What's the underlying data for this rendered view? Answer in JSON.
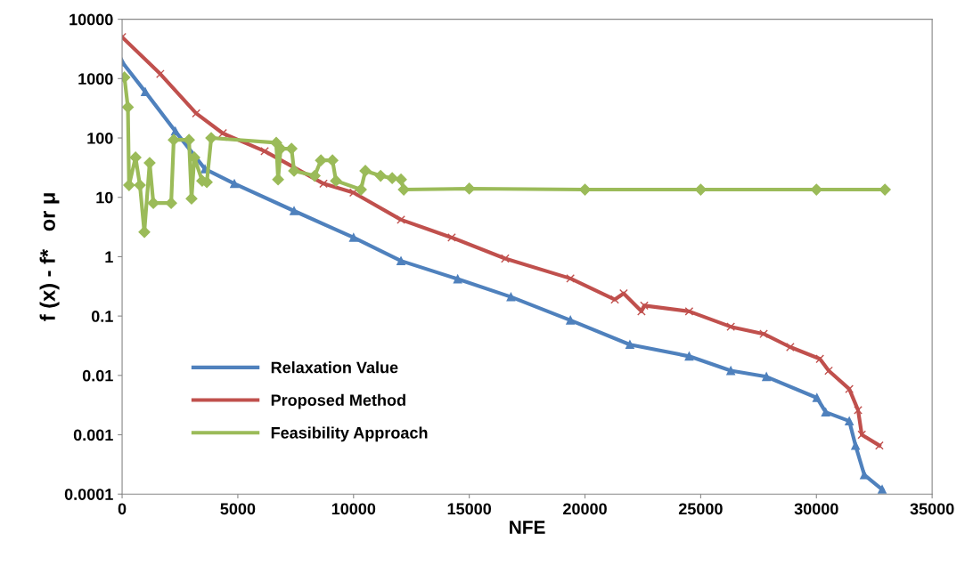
{
  "chart_data": {
    "type": "line",
    "xlabel": "NFE",
    "ylabel": "f (x) - f*   or μ",
    "log": "y",
    "grid": false,
    "legend": "bottom left",
    "xlim": [
      0,
      35000
    ],
    "xticks": [
      0,
      5000,
      10000,
      15000,
      20000,
      25000,
      30000,
      35000
    ],
    "ylim": [
      0.0001,
      10000
    ],
    "yticks": [
      0.0001,
      0.001,
      0.01,
      0.1,
      1,
      10,
      100,
      1000,
      10000
    ],
    "series": [
      {
        "name": "Relaxation Value",
        "color": "#4f81bd",
        "marker": "triangle",
        "x": [
          0,
          1000,
          2300,
          3580,
          4850,
          7430,
          10000,
          12050,
          14500,
          16800,
          19370,
          21940,
          24500,
          26300,
          27840,
          30020,
          30400,
          31420,
          31690,
          32070,
          32840
        ],
        "values": [
          1900,
          600,
          130,
          30,
          17,
          5.9,
          2.1,
          0.85,
          0.42,
          0.21,
          0.085,
          0.033,
          0.021,
          0.012,
          0.0095,
          0.0042,
          0.0024,
          0.0017,
          0.00066,
          0.00021,
          0.00012
        ]
      },
      {
        "name": "Proposed Method",
        "color": "#c0504d",
        "marker": "cross",
        "x": [
          0,
          1650,
          3200,
          4350,
          6160,
          8700,
          10000,
          12050,
          14240,
          16550,
          19370,
          21290,
          21670,
          22440,
          22560,
          24500,
          26300,
          27720,
          28870,
          30150,
          30530,
          31420,
          31800,
          31960,
          32720
        ],
        "values": [
          5000,
          1200,
          260,
          120,
          60,
          17,
          12,
          4.2,
          2.1,
          0.93,
          0.43,
          0.19,
          0.24,
          0.12,
          0.15,
          0.12,
          0.066,
          0.05,
          0.03,
          0.019,
          0.012,
          0.0059,
          0.0026,
          0.001,
          0.00066
        ]
      },
      {
        "name": "Feasibility Approach",
        "color": "#9bbb59",
        "marker": "diamond",
        "x": [
          100,
          250,
          300,
          580,
          770,
          960,
          1190,
          1350,
          2120,
          2230,
          2890,
          3000,
          3120,
          3460,
          3660,
          3850,
          6660,
          6740,
          6850,
          7320,
          7430,
          8320,
          8590,
          9090,
          9240,
          10320,
          10510,
          11170,
          11670,
          12050,
          12170,
          15000,
          20000,
          25000,
          30000,
          32960
        ],
        "values": [
          1050,
          330,
          16,
          47,
          16,
          2.6,
          38,
          8,
          8,
          93,
          93,
          9.5,
          47,
          19,
          18,
          100,
          83,
          20,
          66,
          66,
          28,
          23,
          42,
          42,
          19,
          13.5,
          28,
          23,
          21,
          20,
          13.5,
          14,
          13.5,
          13.5,
          13.5,
          13.5
        ]
      }
    ]
  }
}
